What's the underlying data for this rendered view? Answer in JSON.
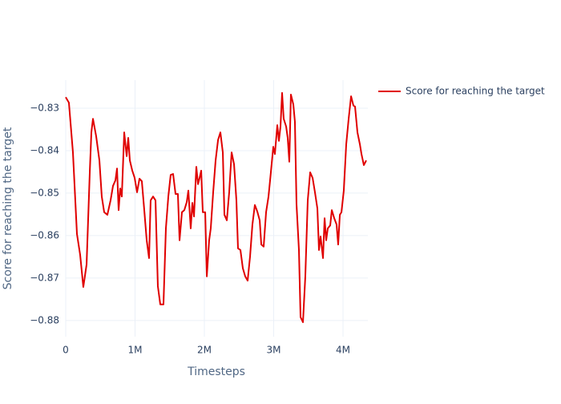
{
  "chart_data": {
    "type": "line",
    "x_label": "Timesteps",
    "y_label": "Score for reaching the target",
    "xlim": [
      0,
      4358000
    ],
    "ylim": [
      -0.8838,
      -0.8234
    ],
    "xticks": [
      0,
      {
        "value": 1000000,
        "label": "1M"
      },
      {
        "value": 2000000,
        "label": "2M"
      },
      {
        "value": 3000000,
        "label": "3M"
      },
      {
        "value": 4000000,
        "label": "4M"
      }
    ],
    "yticks": [
      {
        "value": -0.88,
        "label": "−0.88"
      },
      {
        "value": -0.87,
        "label": "−0.87"
      },
      {
        "value": -0.86,
        "label": "−0.86"
      },
      {
        "value": -0.85,
        "label": "−0.85"
      },
      {
        "value": -0.84,
        "label": "−0.84"
      },
      {
        "value": -0.83,
        "label": "−0.83"
      }
    ],
    "grid": true,
    "legend": "top-right",
    "x": [
      0,
      46000,
      104000,
      162000,
      208000,
      254000,
      301000,
      347000,
      370000,
      393000,
      439000,
      486000,
      520000,
      555000,
      601000,
      647000,
      682000,
      717000,
      740000,
      763000,
      786000,
      809000,
      844000,
      879000,
      902000,
      925000,
      960000,
      994000,
      1029000,
      1064000,
      1098000,
      1133000,
      1168000,
      1202000,
      1225000,
      1260000,
      1295000,
      1329000,
      1364000,
      1410000,
      1445000,
      1480000,
      1514000,
      1549000,
      1584000,
      1618000,
      1642000,
      1676000,
      1711000,
      1746000,
      1769000,
      1803000,
      1827000,
      1850000,
      1884000,
      1908000,
      1931000,
      1954000,
      1977000,
      2012000,
      2035000,
      2069000,
      2092000,
      2127000,
      2162000,
      2197000,
      2231000,
      2266000,
      2289000,
      2324000,
      2358000,
      2393000,
      2428000,
      2462000,
      2485000,
      2520000,
      2555000,
      2589000,
      2624000,
      2659000,
      2693000,
      2728000,
      2763000,
      2798000,
      2821000,
      2855000,
      2890000,
      2925000,
      2959000,
      2994000,
      3017000,
      3052000,
      3075000,
      3098000,
      3121000,
      3144000,
      3179000,
      3202000,
      3225000,
      3248000,
      3283000,
      3306000,
      3329000,
      3364000,
      3387000,
      3422000,
      3456000,
      3491000,
      3526000,
      3561000,
      3595000,
      3630000,
      3653000,
      3676000,
      3711000,
      3734000,
      3757000,
      3780000,
      3815000,
      3838000,
      3873000,
      3907000,
      3930000,
      3954000,
      3977000,
      4011000,
      4046000,
      4081000,
      4116000,
      4150000,
      4173000,
      4208000,
      4243000,
      4266000,
      4300000,
      4335000
    ],
    "series": [
      {
        "name": "Score for reaching the target",
        "color": "#e00000",
        "values": [
          -0.8274,
          -0.8287,
          -0.8404,
          -0.8596,
          -0.8645,
          -0.8721,
          -0.8668,
          -0.8451,
          -0.8357,
          -0.8325,
          -0.8366,
          -0.8423,
          -0.8508,
          -0.8545,
          -0.8551,
          -0.8517,
          -0.8483,
          -0.847,
          -0.8442,
          -0.854,
          -0.8489,
          -0.8508,
          -0.8357,
          -0.8413,
          -0.837,
          -0.8423,
          -0.8447,
          -0.8464,
          -0.8498,
          -0.8466,
          -0.8472,
          -0.854,
          -0.8611,
          -0.8653,
          -0.8517,
          -0.8508,
          -0.8517,
          -0.8719,
          -0.8762,
          -0.8762,
          -0.8583,
          -0.8508,
          -0.8457,
          -0.8455,
          -0.8502,
          -0.8502,
          -0.8611,
          -0.8545,
          -0.854,
          -0.8521,
          -0.8494,
          -0.8583,
          -0.8523,
          -0.8555,
          -0.8438,
          -0.8479,
          -0.8464,
          -0.8447,
          -0.8545,
          -0.8545,
          -0.8696,
          -0.8611,
          -0.8583,
          -0.8498,
          -0.8423,
          -0.8375,
          -0.8357,
          -0.8404,
          -0.8551,
          -0.8564,
          -0.8498,
          -0.8404,
          -0.8432,
          -0.8517,
          -0.863,
          -0.8634,
          -0.8677,
          -0.8696,
          -0.8706,
          -0.8649,
          -0.8574,
          -0.8528,
          -0.8543,
          -0.8564,
          -0.8621,
          -0.8626,
          -0.8545,
          -0.8508,
          -0.8451,
          -0.8391,
          -0.8408,
          -0.834,
          -0.8377,
          -0.8343,
          -0.8264,
          -0.8325,
          -0.8343,
          -0.837,
          -0.8426,
          -0.8268,
          -0.8291,
          -0.8332,
          -0.8526,
          -0.8634,
          -0.8792,
          -0.8804,
          -0.8696,
          -0.8517,
          -0.8451,
          -0.8464,
          -0.8498,
          -0.8536,
          -0.8634,
          -0.8602,
          -0.8653,
          -0.8559,
          -0.8611,
          -0.8583,
          -0.8576,
          -0.854,
          -0.8559,
          -0.8574,
          -0.8621,
          -0.8551,
          -0.8545,
          -0.8494,
          -0.8385,
          -0.8325,
          -0.8272,
          -0.8294,
          -0.8296,
          -0.8357,
          -0.8385,
          -0.8408,
          -0.8434,
          -0.8423
        ]
      }
    ]
  }
}
